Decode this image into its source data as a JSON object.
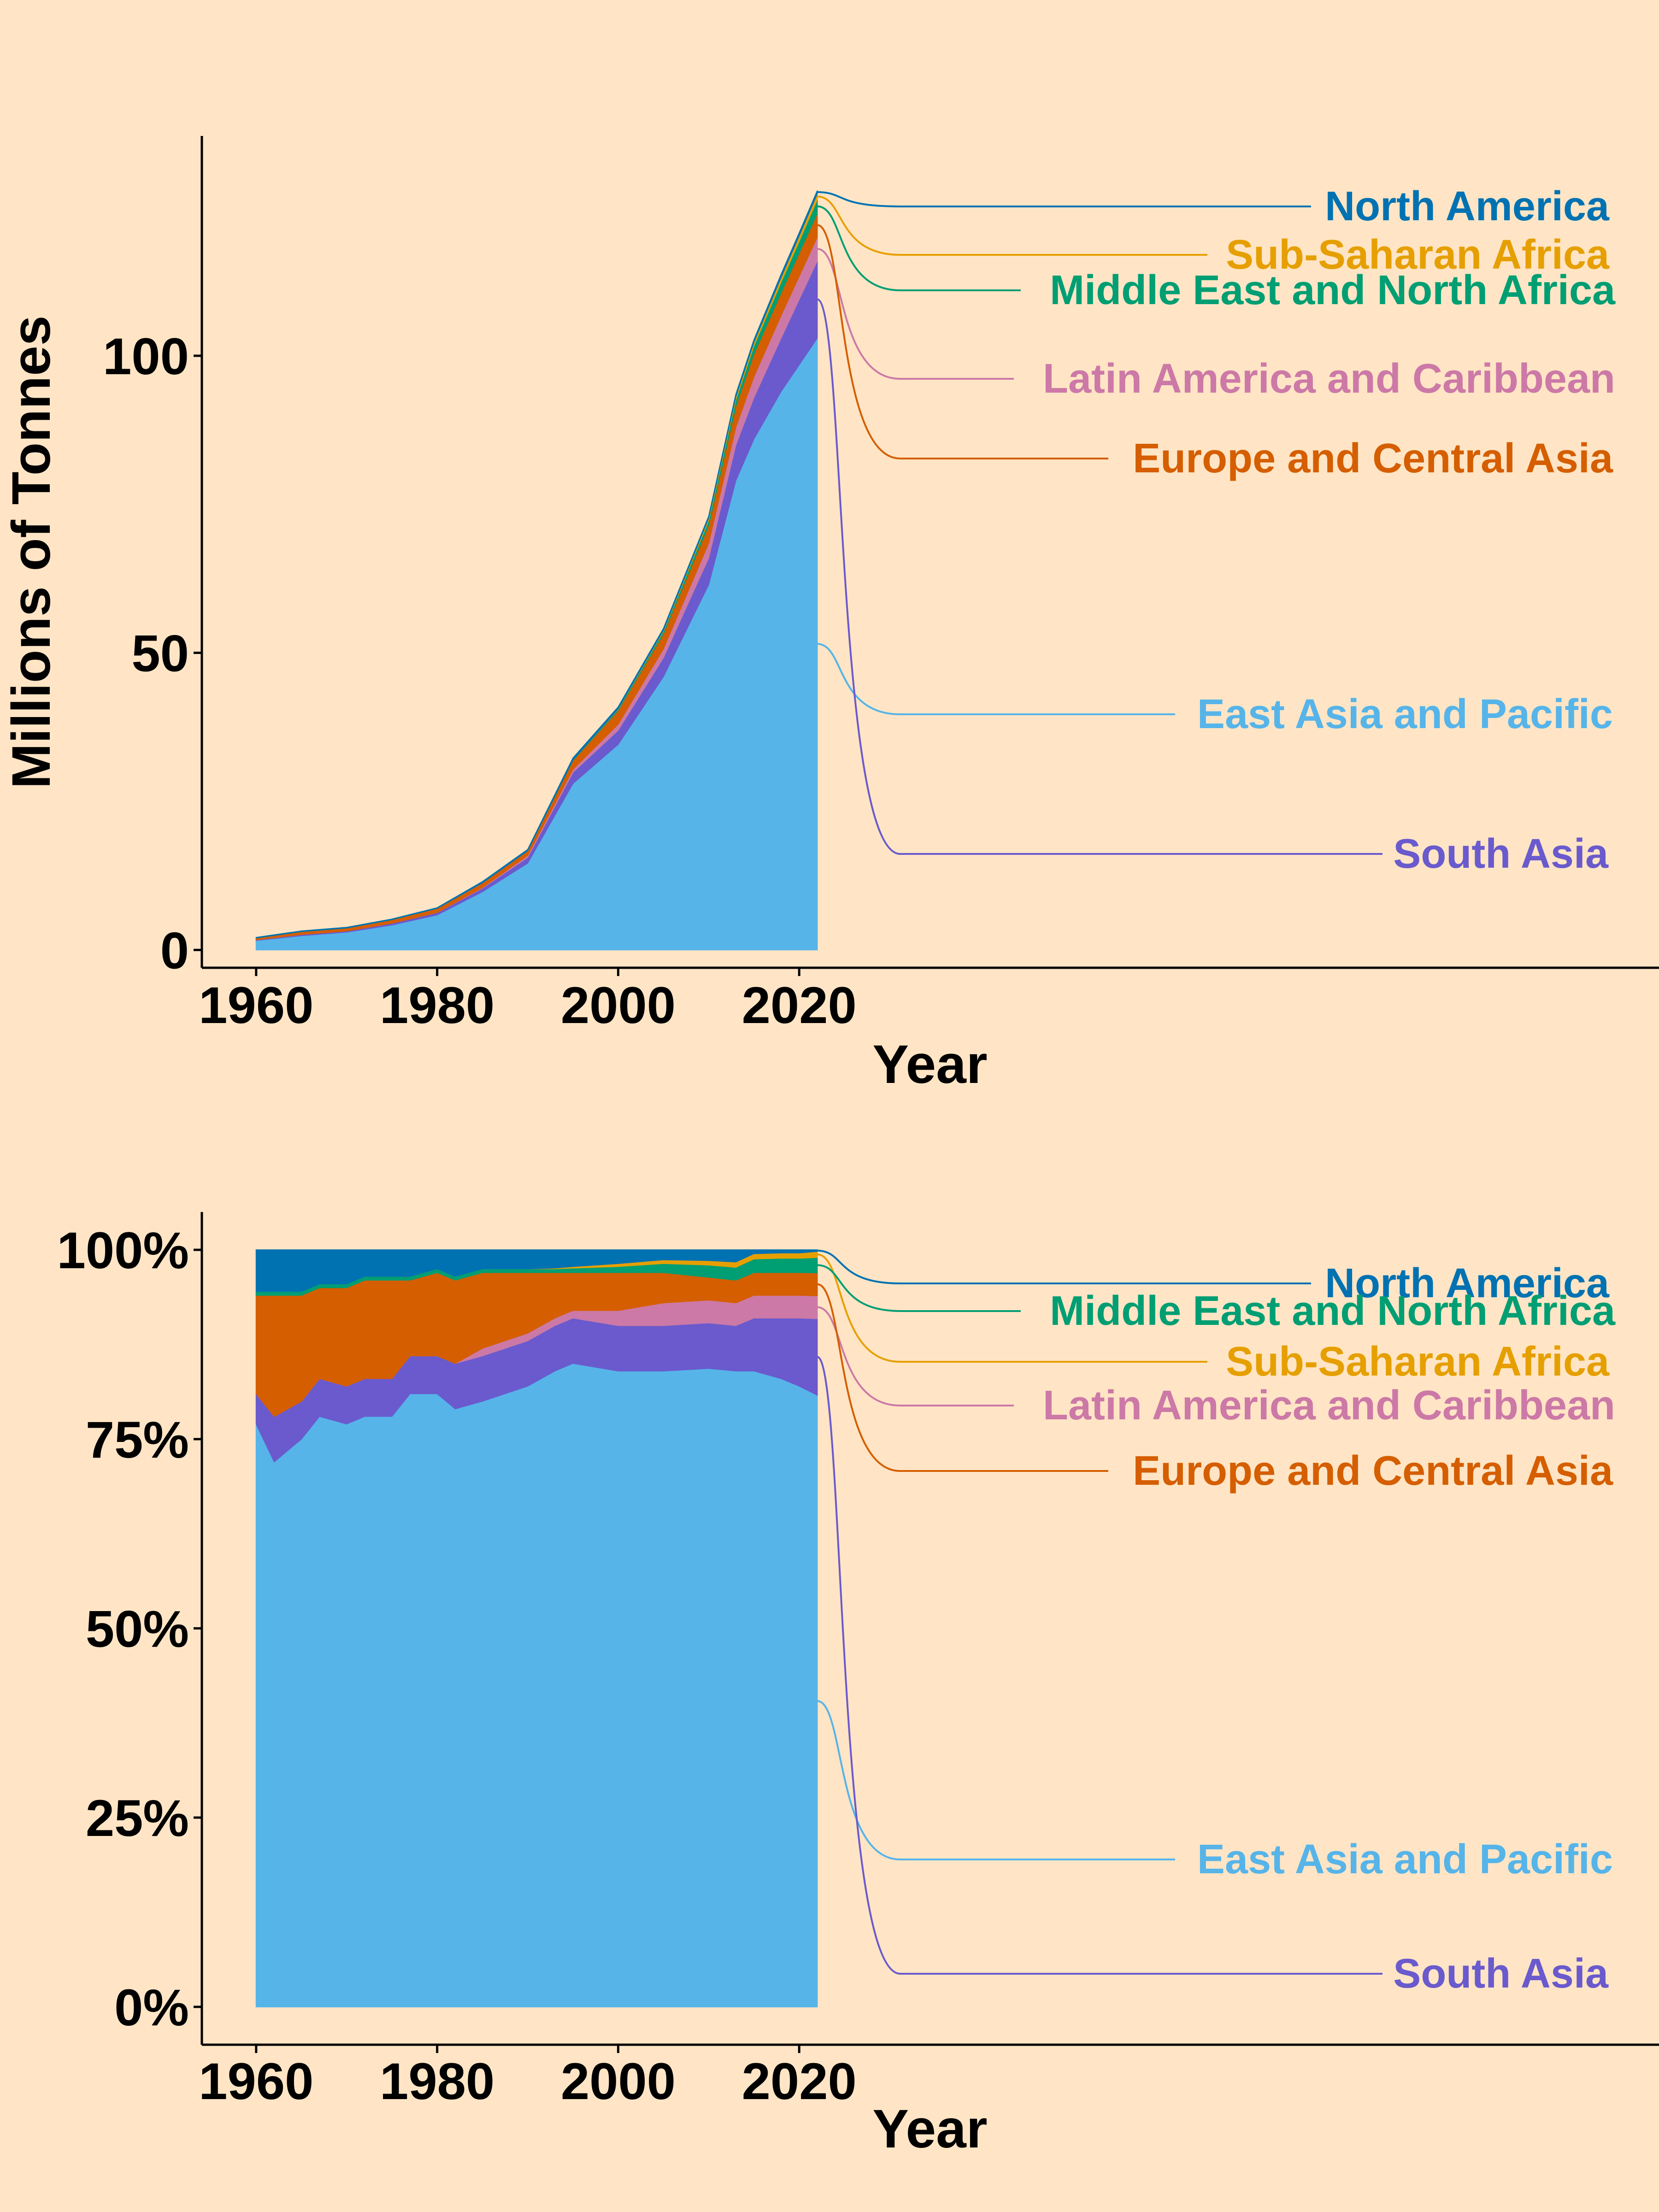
{
  "chart_data": [
    {
      "type": "area",
      "stacked": true,
      "xlabel": "Year",
      "ylabel": "Millions of Tonnes",
      "xlim": [
        1954,
        2115
      ],
      "ylim": [
        -3,
        137
      ],
      "xticks": [
        1960,
        1980,
        2000,
        2020
      ],
      "yticks": [
        0,
        50,
        100
      ],
      "ytick_labels": [
        "0",
        "50",
        "100"
      ],
      "grid": false,
      "legend": "direct-labels-right",
      "x": [
        1960,
        1965,
        1970,
        1975,
        1980,
        1985,
        1990,
        1995,
        2000,
        2005,
        2010,
        2013,
        2015,
        2018,
        2020,
        2022
      ],
      "series": [
        {
          "name": "East Asia and Pacific",
          "color": "#56B4E9",
          "values": [
            1.6,
            2.4,
            3.0,
            4.2,
            5.9,
            9.8,
            14.6,
            28.0,
            34.6,
            46.0,
            61.5,
            79.0,
            86.0,
            94.0,
            98.5,
            103.0
          ]
        },
        {
          "name": "South Asia",
          "color": "#6A5ACD",
          "values": [
            0.1,
            0.2,
            0.2,
            0.3,
            0.4,
            0.6,
            1.0,
            1.9,
            2.4,
            3.2,
            4.5,
            6.0,
            7.0,
            9.0,
            11.0,
            13.0
          ]
        },
        {
          "name": "Latin America and Caribbean",
          "color": "#CC79A7",
          "values": [
            0.0,
            0.0,
            0.0,
            0.0,
            0.0,
            0.1,
            0.3,
            0.5,
            1.0,
            1.5,
            2.5,
            3.0,
            3.5,
            3.8,
            3.9,
            4.0
          ]
        },
        {
          "name": "Europe and Central Asia",
          "color": "#D55E00",
          "values": [
            0.3,
            0.5,
            0.5,
            0.6,
            0.7,
            0.8,
            0.8,
            1.5,
            2.3,
            2.5,
            3.0,
            3.5,
            3.8,
            3.8,
            3.9,
            4.0
          ]
        },
        {
          "name": "Middle East and North Africa",
          "color": "#009E73",
          "values": [
            0.0,
            0.0,
            0.0,
            0.0,
            0.0,
            0.0,
            0.0,
            0.1,
            0.2,
            0.4,
            0.8,
            1.1,
            1.4,
            1.8,
            2.0,
            2.3
          ]
        },
        {
          "name": "Sub-Saharan Africa",
          "color": "#E69F00",
          "values": [
            0.0,
            0.0,
            0.0,
            0.0,
            0.0,
            0.0,
            0.0,
            0.0,
            0.1,
            0.2,
            0.4,
            0.5,
            0.6,
            0.8,
            0.9,
            1.0
          ]
        },
        {
          "name": "North America",
          "color": "#0072B2",
          "values": [
            0.1,
            0.1,
            0.1,
            0.1,
            0.1,
            0.2,
            0.2,
            0.3,
            0.3,
            0.3,
            0.3,
            0.4,
            0.4,
            0.5,
            0.5,
            0.5
          ]
        }
      ]
    },
    {
      "type": "area",
      "stacked": true,
      "normalized": true,
      "xlabel": "Year",
      "ylabel": "",
      "xlim": [
        1954,
        2115
      ],
      "ylim": [
        -5,
        105
      ],
      "xticks": [
        1960,
        1980,
        2000,
        2020
      ],
      "yticks": [
        0,
        25,
        50,
        75,
        100
      ],
      "ytick_labels": [
        "0%",
        "25%",
        "50%",
        "75%",
        "100%"
      ],
      "grid": false,
      "legend": "direct-labels-right",
      "x": [
        1960,
        1962,
        1965,
        1967,
        1970,
        1972,
        1975,
        1977,
        1980,
        1982,
        1985,
        1990,
        1993,
        1995,
        2000,
        2005,
        2010,
        2013,
        2015,
        2018,
        2020,
        2022
      ],
      "series": [
        {
          "name": "East Asia and Pacific",
          "color": "#56B4E9",
          "values": [
            77,
            72,
            75,
            78,
            77,
            78,
            78,
            81,
            81,
            79,
            80,
            82,
            84,
            85,
            84,
            84,
            84,
            84,
            84,
            83,
            82,
            80
          ]
        },
        {
          "name": "South Asia",
          "color": "#6A5ACD",
          "values": [
            4,
            6,
            5,
            5,
            5,
            5,
            5,
            5,
            5,
            6,
            6,
            6,
            6,
            6,
            6,
            6,
            6,
            6,
            7,
            8,
            9,
            10
          ]
        },
        {
          "name": "Latin America and Caribbean",
          "color": "#CC79A7",
          "values": [
            0,
            0,
            0,
            0,
            0,
            0,
            0,
            0,
            0,
            0,
            1,
            1,
            1,
            1,
            2,
            3,
            3,
            3,
            3,
            3,
            3,
            3
          ]
        },
        {
          "name": "Europe and Central Asia",
          "color": "#D55E00",
          "values": [
            13,
            16,
            14,
            12,
            13,
            13,
            13,
            10,
            11,
            11,
            10,
            8,
            6,
            5,
            5,
            4,
            3,
            3,
            3,
            3,
            3,
            3
          ]
        },
        {
          "name": "Middle East and North Africa",
          "color": "#009E73",
          "values": [
            0.5,
            0.5,
            0.5,
            0.5,
            0.5,
            0.5,
            0.5,
            0.5,
            0.5,
            0.5,
            0.5,
            0.5,
            0.5,
            0.6,
            0.8,
            1.2,
            1.6,
            1.7,
            1.8,
            1.9,
            1.9,
            2.0
          ]
        },
        {
          "name": "Sub-Saharan Africa",
          "color": "#E69F00",
          "values": [
            0,
            0,
            0,
            0,
            0,
            0,
            0,
            0,
            0,
            0,
            0,
            0,
            0.1,
            0.2,
            0.4,
            0.5,
            0.6,
            0.7,
            0.7,
            0.7,
            0.7,
            0.8
          ]
        },
        {
          "name": "North America",
          "color": "#0072B2",
          "values": [
            5.5,
            5.5,
            5.5,
            4.5,
            4.5,
            3.5,
            3.5,
            3.5,
            2.5,
            3.5,
            2.5,
            2.5,
            2.4,
            2.2,
            1.8,
            1.3,
            1.4,
            1.6,
            0.5,
            0.4,
            0.4,
            0.2
          ]
        }
      ]
    }
  ]
}
